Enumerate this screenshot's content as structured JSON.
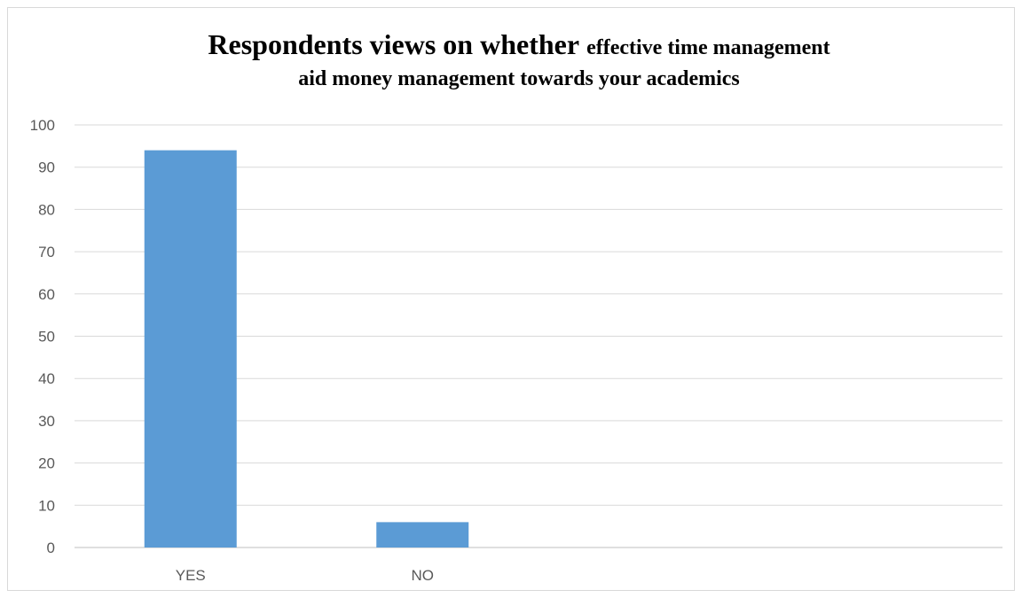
{
  "chart_data": {
    "type": "bar",
    "title_part1": "Respondents views on whether",
    "title_part2": "effective time management",
    "title_line2": "aid money management  towards your academics",
    "categories": [
      "YES",
      "NO"
    ],
    "values": [
      94,
      6
    ],
    "ylim": [
      0,
      100
    ],
    "yticks": [
      0,
      10,
      20,
      30,
      40,
      50,
      60,
      70,
      80,
      90,
      100
    ],
    "xlabel": "",
    "ylabel": "",
    "grid": true,
    "legend": "none",
    "bar_color": "#5b9bd5"
  }
}
